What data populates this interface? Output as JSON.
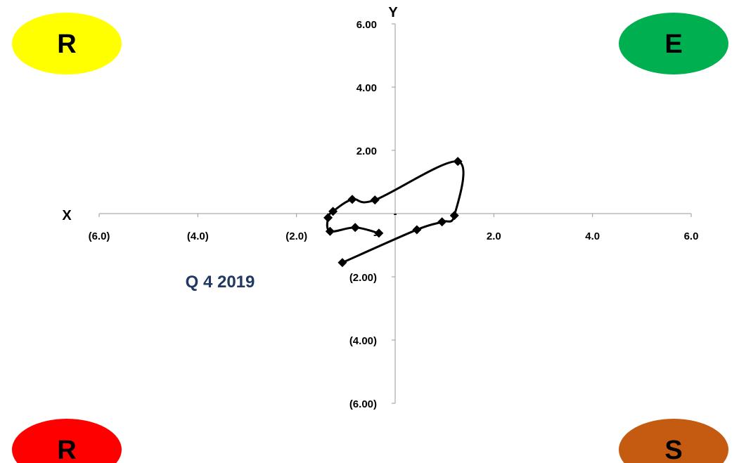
{
  "chart_data": {
    "type": "scatter",
    "title": "",
    "xlabel": "X",
    "ylabel": "Y",
    "xlim": [
      -6,
      6
    ],
    "ylim": [
      -6,
      6
    ],
    "x_ticks": [
      {
        "value": -6,
        "label": "(6.0)"
      },
      {
        "value": -4,
        "label": "(4.0)"
      },
      {
        "value": -2,
        "label": "(2.0)"
      },
      {
        "value": 0,
        "label": "-"
      },
      {
        "value": 2,
        "label": "2.0"
      },
      {
        "value": 4,
        "label": "4.0"
      },
      {
        "value": 6,
        "label": "6.0"
      }
    ],
    "y_ticks": [
      {
        "value": 6,
        "label": "6.00"
      },
      {
        "value": 4,
        "label": "4.00"
      },
      {
        "value": 2,
        "label": "2.00"
      },
      {
        "value": 0,
        "label": "-"
      },
      {
        "value": -2,
        "label": "(2.00)"
      },
      {
        "value": -4,
        "label": "(4.00)"
      },
      {
        "value": -6,
        "label": "(6.00)"
      }
    ],
    "grid": false,
    "annotation": "Q 4 2019",
    "series": [
      {
        "line_style": "smooth",
        "marker": "diamond",
        "color": "#000000",
        "points": [
          {
            "x": -1.07,
            "y": -1.55
          },
          {
            "x": 0.44,
            "y": -0.51
          },
          {
            "x": 0.95,
            "y": -0.26
          },
          {
            "x": 1.2,
            "y": -0.06
          },
          {
            "x": 1.27,
            "y": 1.65
          },
          {
            "x": -0.41,
            "y": 0.43
          },
          {
            "x": -0.87,
            "y": 0.45
          },
          {
            "x": -1.26,
            "y": 0.07
          },
          {
            "x": -1.36,
            "y": -0.13
          },
          {
            "x": -1.32,
            "y": -0.56
          },
          {
            "x": -0.81,
            "y": -0.44
          },
          {
            "x": -0.33,
            "y": -0.62
          }
        ]
      }
    ],
    "quadrants": [
      {
        "position": "top-left",
        "label": "R",
        "color": "#ffff00"
      },
      {
        "position": "top-right",
        "label": "E",
        "color": "#00b050"
      },
      {
        "position": "bottom-left",
        "label": "R",
        "color": "#ff0000"
      },
      {
        "position": "bottom-right",
        "label": "S",
        "color": "#c55a11"
      }
    ]
  }
}
